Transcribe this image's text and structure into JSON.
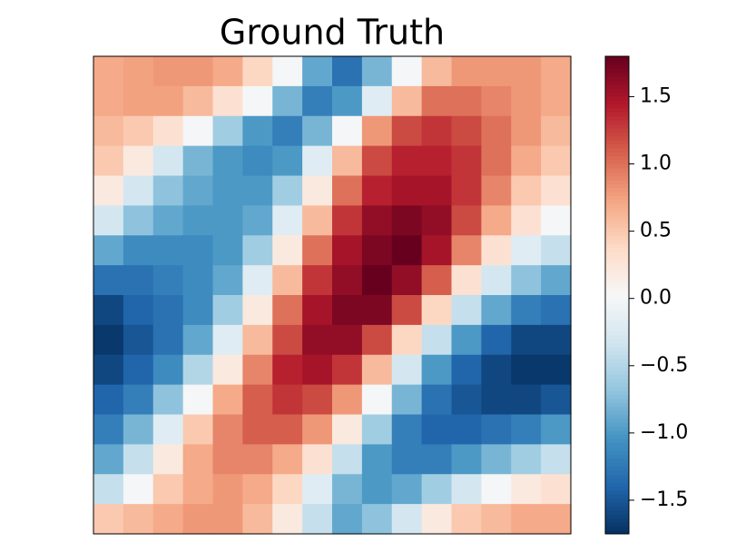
{
  "chart_data": {
    "type": "heatmap",
    "title": "Ground Truth",
    "colormap": "RdBu_r",
    "clim": [
      -1.75,
      1.8
    ],
    "colorbar_ticks": [
      {
        "value": -1.5,
        "label": "−1.5"
      },
      {
        "value": -1.0,
        "label": "−1.0"
      },
      {
        "value": -0.5,
        "label": "−0.5"
      },
      {
        "value": 0,
        "label": "0.0"
      },
      {
        "value": 0.5,
        "label": "0.5"
      },
      {
        "value": 1.0,
        "label": "1.0"
      },
      {
        "value": 1.5,
        "label": "1.5"
      }
    ],
    "z": [
      [
        0.7,
        0.75,
        0.8,
        0.8,
        0.7,
        0.4,
        0.0,
        -0.9,
        -1.3,
        -0.8,
        0.0,
        0.6,
        0.8,
        0.8,
        0.8,
        0.7
      ],
      [
        0.7,
        0.75,
        0.75,
        0.6,
        0.3,
        0.0,
        -0.8,
        -1.2,
        -1.0,
        -0.2,
        0.6,
        1.0,
        1.0,
        0.9,
        0.8,
        0.7
      ],
      [
        0.6,
        0.5,
        0.3,
        0.0,
        -0.6,
        -1.0,
        -1.2,
        -0.8,
        0.0,
        0.8,
        1.2,
        1.3,
        1.2,
        1.0,
        0.8,
        0.6
      ],
      [
        0.5,
        0.2,
        -0.3,
        -0.8,
        -1.0,
        -1.1,
        -1.0,
        -0.2,
        0.6,
        1.2,
        1.4,
        1.4,
        1.3,
        1.0,
        0.7,
        0.5
      ],
      [
        0.2,
        -0.3,
        -0.7,
        -0.9,
        -1.0,
        -1.0,
        -0.6,
        0.2,
        1.0,
        1.4,
        1.5,
        1.5,
        1.3,
        0.9,
        0.5,
        0.3
      ],
      [
        -0.3,
        -0.7,
        -0.9,
        -1.0,
        -1.0,
        -0.9,
        -0.2,
        0.6,
        1.3,
        1.6,
        1.7,
        1.6,
        1.2,
        0.7,
        0.3,
        0.0
      ],
      [
        -0.9,
        -1.1,
        -1.1,
        -1.1,
        -1.0,
        -0.6,
        0.2,
        1.0,
        1.5,
        1.7,
        1.8,
        1.5,
        0.9,
        0.3,
        -0.2,
        -0.4
      ],
      [
        -1.3,
        -1.3,
        -1.2,
        -1.1,
        -0.9,
        -0.2,
        0.6,
        1.3,
        1.6,
        1.8,
        1.6,
        1.1,
        0.3,
        -0.3,
        -0.7,
        -0.9
      ],
      [
        -1.6,
        -1.4,
        -1.3,
        -1.1,
        -0.6,
        0.2,
        1.0,
        1.5,
        1.7,
        1.7,
        1.2,
        0.4,
        -0.4,
        -0.9,
        -1.2,
        -1.3
      ],
      [
        -1.7,
        -1.5,
        -1.3,
        -0.9,
        -0.2,
        0.6,
        1.2,
        1.6,
        1.6,
        1.2,
        0.4,
        -0.4,
        -1.0,
        -1.4,
        -1.6,
        -1.6
      ],
      [
        -1.6,
        -1.4,
        -1.1,
        -0.5,
        0.2,
        0.9,
        1.4,
        1.5,
        1.3,
        0.6,
        -0.3,
        -1.0,
        -1.4,
        -1.6,
        -1.7,
        -1.7
      ],
      [
        -1.4,
        -1.2,
        -0.7,
        0.0,
        0.7,
        1.1,
        1.3,
        1.2,
        0.8,
        0.0,
        -0.8,
        -1.3,
        -1.5,
        -1.6,
        -1.6,
        -1.5
      ],
      [
        -1.2,
        -0.8,
        -0.2,
        0.5,
        0.9,
        1.1,
        1.1,
        0.8,
        0.2,
        -0.6,
        -1.2,
        -1.4,
        -1.4,
        -1.3,
        -1.2,
        -1.0
      ],
      [
        -0.9,
        -0.4,
        0.2,
        0.7,
        0.9,
        0.9,
        0.7,
        0.3,
        -0.4,
        -1.0,
        -1.2,
        -1.2,
        -1.0,
        -0.8,
        -0.6,
        -0.4
      ],
      [
        -0.4,
        0.0,
        0.5,
        0.7,
        0.8,
        0.7,
        0.4,
        -0.2,
        -0.8,
        -1.0,
        -0.9,
        -0.6,
        -0.3,
        0.0,
        0.2,
        0.3
      ],
      [
        0.5,
        0.6,
        0.7,
        0.8,
        0.8,
        0.6,
        0.2,
        -0.4,
        -0.9,
        -0.7,
        -0.3,
        0.2,
        0.5,
        0.6,
        0.7,
        0.7
      ]
    ]
  }
}
